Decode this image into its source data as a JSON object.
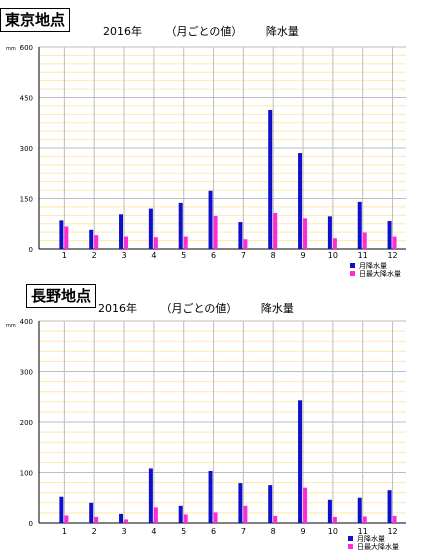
{
  "colors": {
    "monthly": "#1010cc",
    "daily_max": "#ff2bd6",
    "grid_major": "#bdbdbd",
    "grid_minor": "#ffe9a8",
    "axis": "#000000"
  },
  "chart_data": [
    {
      "type": "bar",
      "station": "東京地点",
      "year_label": "2016年",
      "period_label": "（月ごとの値）",
      "metric_label": "降水量",
      "unit": "mm",
      "categories": [
        "1",
        "2",
        "3",
        "4",
        "5",
        "6",
        "7",
        "8",
        "9",
        "10",
        "11",
        "12"
      ],
      "series": [
        {
          "name": "月降水量",
          "values": [
            85,
            57,
            103,
            120,
            137,
            173,
            80,
            413,
            285,
            97,
            140,
            83
          ]
        },
        {
          "name": "日最大降水量",
          "values": [
            67,
            41,
            37,
            35,
            37,
            98,
            29,
            107,
            91,
            32,
            49,
            37
          ]
        }
      ],
      "ylim": [
        0,
        600
      ],
      "yticks": [
        "0",
        "150",
        "300",
        "450",
        "600"
      ],
      "grid": true,
      "legend": "bottom-right"
    },
    {
      "type": "bar",
      "station": "長野地点",
      "year_label": "2016年",
      "period_label": "（月ごとの値）",
      "metric_label": "降水量",
      "unit": "mm",
      "categories": [
        "1",
        "2",
        "3",
        "4",
        "5",
        "6",
        "7",
        "8",
        "9",
        "10",
        "11",
        "12"
      ],
      "series": [
        {
          "name": "月降水量",
          "values": [
            52,
            40,
            18,
            108,
            34,
            103,
            79,
            75,
            243,
            46,
            50,
            65
          ]
        },
        {
          "name": "日最大降水量",
          "values": [
            15,
            12,
            7,
            31,
            17,
            21,
            34,
            14,
            70,
            12,
            13,
            14
          ]
        }
      ],
      "ylim": [
        0,
        400
      ],
      "yticks": [
        "0",
        "100",
        "200",
        "300",
        "400"
      ],
      "grid": true,
      "legend": "bottom-right"
    }
  ]
}
